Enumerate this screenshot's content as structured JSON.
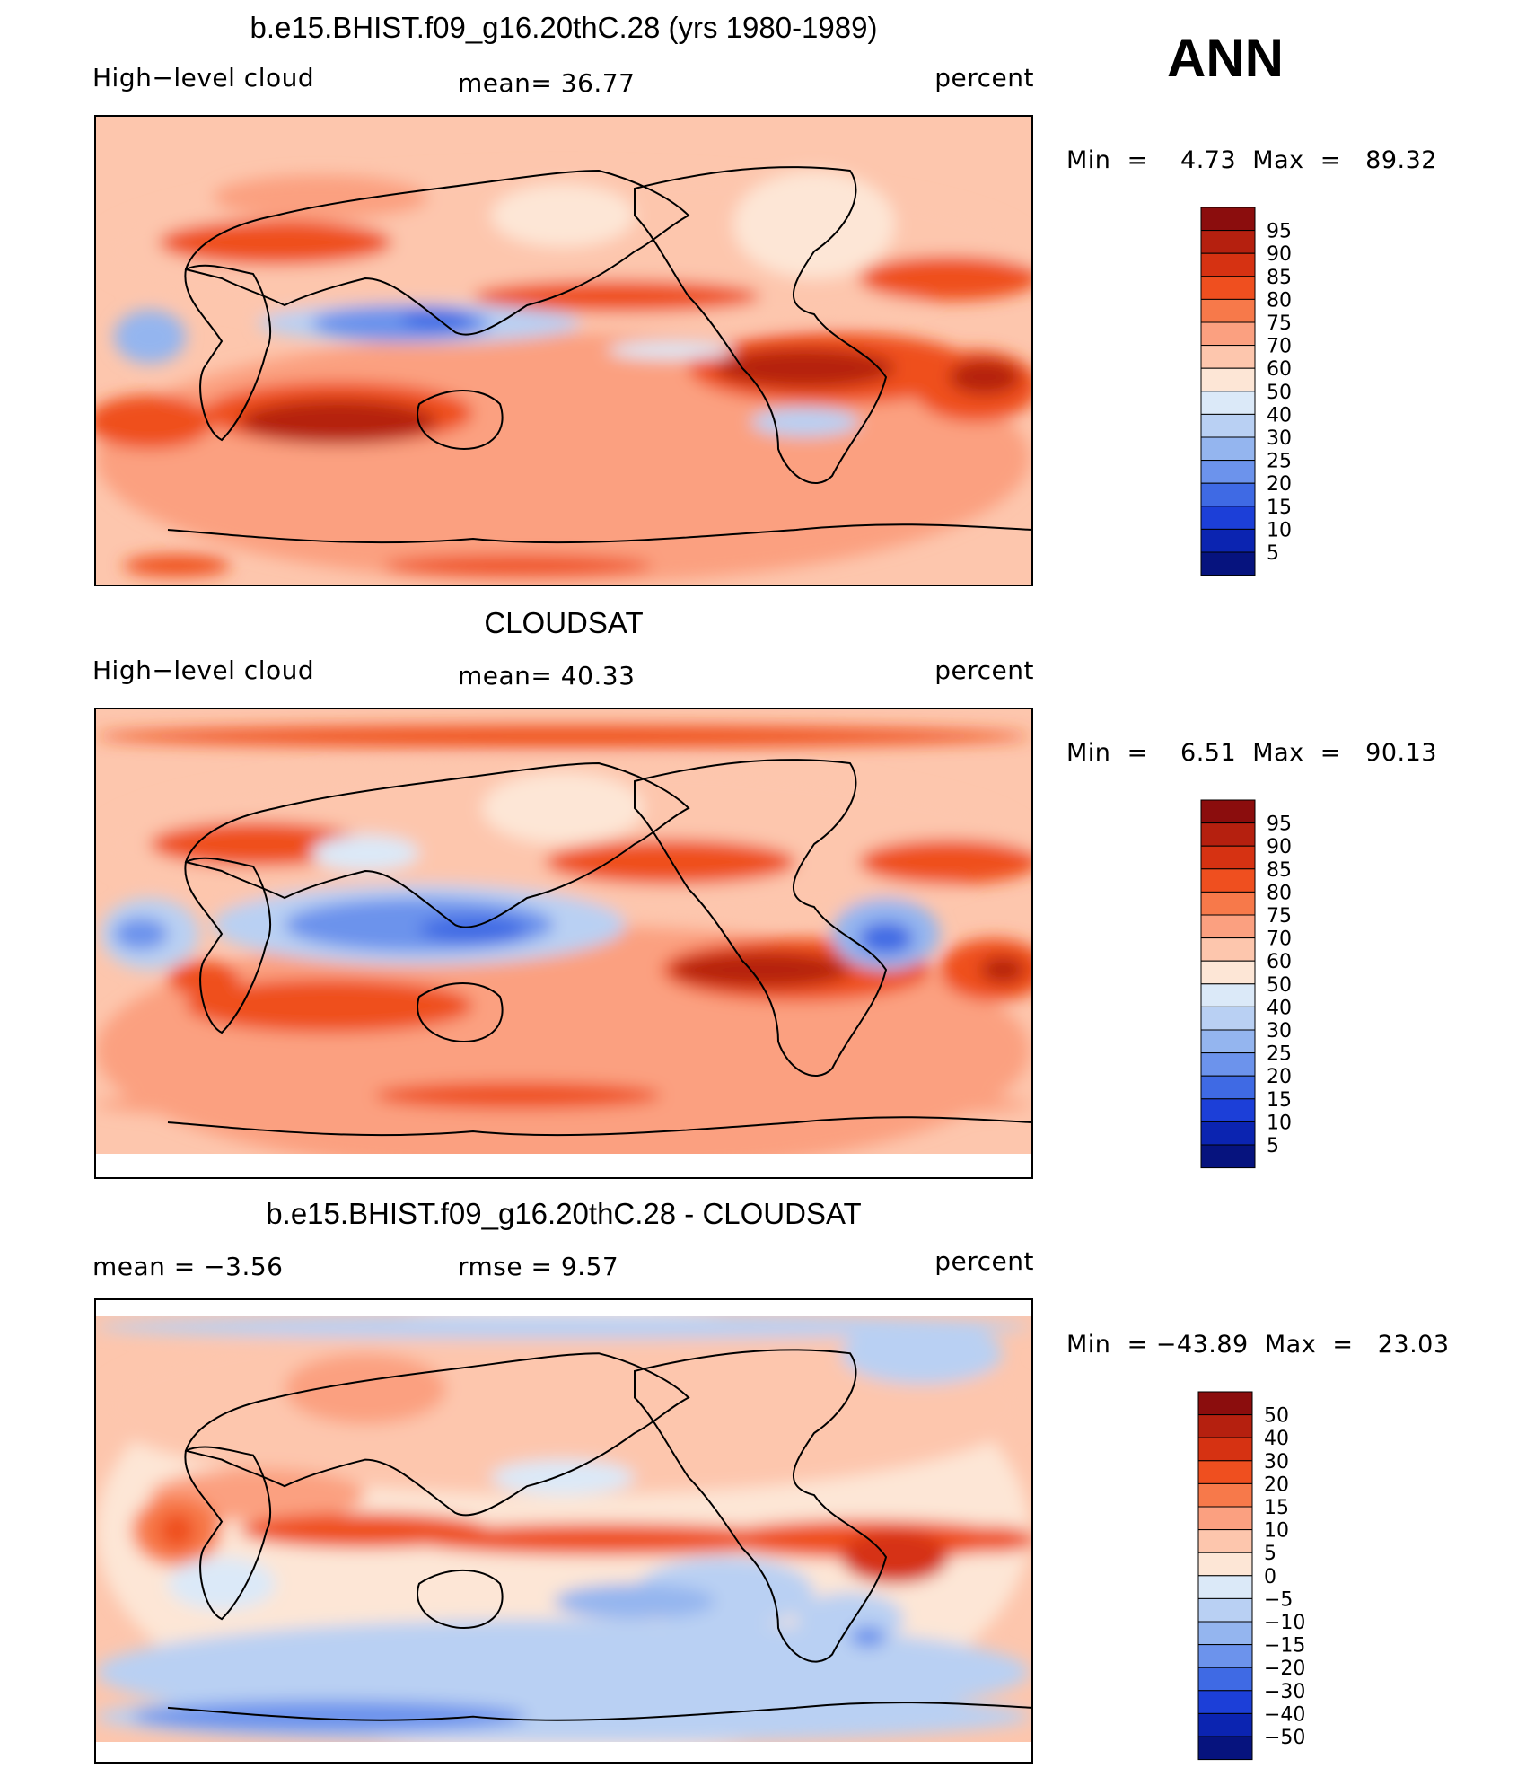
{
  "header": {
    "season": "ANN"
  },
  "panels": [
    {
      "title": "b.e15.BHIST.f09_g16.20thC.28 (yrs 1980-1989)",
      "left_label": "High−level cloud",
      "center_label": "mean=   36.77",
      "right_label": "percent",
      "stats": "Min  =    4.73  Max  =   89.32",
      "colorbar": {
        "labels": [
          "95",
          "90",
          "85",
          "80",
          "75",
          "70",
          "60",
          "50",
          "40",
          "30",
          "25",
          "20",
          "15",
          "10",
          "5"
        ],
        "colors": [
          "#8b0d0d",
          "#b5200f",
          "#d63212",
          "#ef4f1f",
          "#f7794a",
          "#fba080",
          "#fdc6ad",
          "#fde6d6",
          "#dbe9f8",
          "#b9d0f3",
          "#94b5ef",
          "#6c93ec",
          "#3f6ae4",
          "#1c3fd8",
          "#0b24b1",
          "#06137e"
        ]
      },
      "map_style": "model"
    },
    {
      "title": "CLOUDSAT",
      "left_label": "High−level cloud",
      "center_label": "mean=   40.33",
      "right_label": "percent",
      "stats": "Min  =    6.51  Max  =   90.13",
      "colorbar": {
        "labels": [
          "95",
          "90",
          "85",
          "80",
          "75",
          "70",
          "60",
          "50",
          "40",
          "30",
          "25",
          "20",
          "15",
          "10",
          "5"
        ],
        "colors": [
          "#8b0d0d",
          "#b5200f",
          "#d63212",
          "#ef4f1f",
          "#f7794a",
          "#fba080",
          "#fdc6ad",
          "#fde6d6",
          "#dbe9f8",
          "#b9d0f3",
          "#94b5ef",
          "#6c93ec",
          "#3f6ae4",
          "#1c3fd8",
          "#0b24b1",
          "#06137e"
        ]
      },
      "map_style": "obs"
    },
    {
      "title": "b.e15.BHIST.f09_g16.20thC.28 - CLOUDSAT",
      "left_label": "mean  =    −3.56",
      "center_label": "rmse  =     9.57",
      "right_label": "percent",
      "stats": "Min  = −43.89  Max  =   23.03",
      "colorbar": {
        "labels": [
          "50",
          "40",
          "30",
          "20",
          "15",
          "10",
          "5",
          "0",
          "−5",
          "−10",
          "−15",
          "−20",
          "−30",
          "−40",
          "−50"
        ],
        "colors": [
          "#8b0d0d",
          "#b5200f",
          "#d63212",
          "#ef4f1f",
          "#f7794a",
          "#fba080",
          "#fdc6ad",
          "#fde6d6",
          "#dbe9f8",
          "#b9d0f3",
          "#94b5ef",
          "#6c93ec",
          "#3f6ae4",
          "#1c3fd8",
          "#0b24b1",
          "#06137e"
        ]
      },
      "map_style": "diff"
    }
  ]
}
